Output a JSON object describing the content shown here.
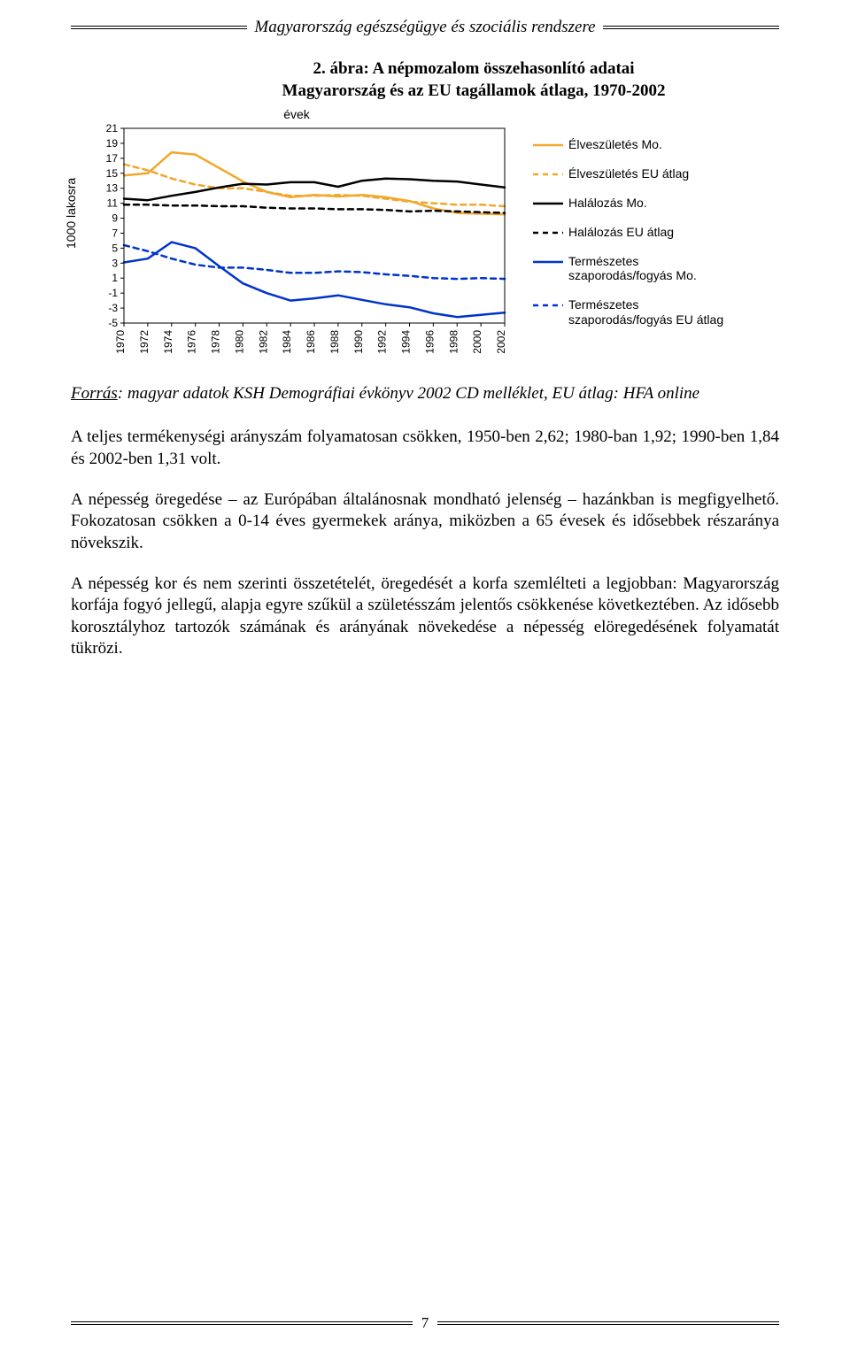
{
  "header": {
    "running_title": "Magyarország egészségügye és szociális rendszere"
  },
  "chart": {
    "title": "2. ábra: A népmozalom összehasonlító adatai\nMagyarország és az EU tagállamok átlaga, 1970-2002",
    "xlabel": "évek",
    "ylabel": "1000 lakosra",
    "years": [
      1970,
      1972,
      1974,
      1976,
      1978,
      1980,
      1982,
      1984,
      1986,
      1988,
      1990,
      1992,
      1994,
      1996,
      1998,
      2000,
      2002
    ],
    "yticks": [
      21,
      19,
      17,
      15,
      13,
      11,
      9,
      7,
      5,
      3,
      1,
      -1,
      -3,
      -5
    ],
    "ylim": [
      -5,
      21
    ],
    "background_color": "#ffffff",
    "axis_color": "#000000",
    "tick_fontsize": 12,
    "series": [
      {
        "key": "birth_mo",
        "label": "Élveszületés Mo.",
        "color": "#f2a72b",
        "dash": "none",
        "width": 2.5,
        "data": [
          14.7,
          15.0,
          17.8,
          17.5,
          15.7,
          13.9,
          12.5,
          11.8,
          12.1,
          11.9,
          12.1,
          11.8,
          11.3,
          10.3,
          9.7,
          9.6,
          9.5
        ]
      },
      {
        "key": "birth_eu",
        "label": "Élveszületés EU átlag",
        "color": "#f2a72b",
        "dash": "6 5",
        "width": 2.5,
        "data": [
          16.2,
          15.4,
          14.3,
          13.5,
          13.0,
          13.0,
          12.5,
          12.0,
          12.0,
          12.1,
          12.0,
          11.6,
          11.2,
          11.0,
          10.8,
          10.8,
          10.6
        ]
      },
      {
        "key": "death_mo",
        "label": "Halálozás Mo.",
        "color": "#000000",
        "dash": "none",
        "width": 2.5,
        "data": [
          11.6,
          11.4,
          12.0,
          12.5,
          13.1,
          13.6,
          13.5,
          13.8,
          13.8,
          13.2,
          14.0,
          14.3,
          14.2,
          14.0,
          13.9,
          13.5,
          13.1
        ]
      },
      {
        "key": "death_eu",
        "label": "Halálozás EU átlag",
        "color": "#000000",
        "dash": "6 5",
        "width": 2.5,
        "data": [
          10.8,
          10.8,
          10.7,
          10.7,
          10.6,
          10.6,
          10.4,
          10.3,
          10.3,
          10.2,
          10.2,
          10.1,
          9.9,
          10.0,
          9.9,
          9.8,
          9.7
        ]
      },
      {
        "key": "nat_mo",
        "label": "Természetes szaporodás/fogyás Mo.",
        "color": "#0033cc",
        "dash": "none",
        "width": 2.5,
        "data": [
          3.1,
          3.6,
          5.8,
          5.0,
          2.6,
          0.3,
          -1.0,
          -2.0,
          -1.7,
          -1.3,
          -1.9,
          -2.5,
          -2.9,
          -3.7,
          -4.2,
          -3.9,
          -3.6
        ]
      },
      {
        "key": "nat_eu",
        "label": "Természetes szaporodás/fogyás EU átlag",
        "color": "#0033cc",
        "dash": "6 5",
        "width": 2.5,
        "data": [
          5.4,
          4.6,
          3.6,
          2.8,
          2.4,
          2.4,
          2.1,
          1.7,
          1.7,
          1.9,
          1.8,
          1.5,
          1.3,
          1.0,
          0.9,
          1.0,
          0.9
        ]
      }
    ]
  },
  "legend": {
    "items": [
      {
        "key": "birth_mo",
        "label": "Élveszületés Mo."
      },
      {
        "key": "birth_eu",
        "label": "Élveszületés EU átlag"
      },
      {
        "key": "death_mo",
        "label": "Halálozás Mo."
      },
      {
        "key": "death_eu",
        "label": "Halálozás EU átlag"
      },
      {
        "key": "nat_mo",
        "label": "Természetes szaporodás/fogyás Mo."
      },
      {
        "key": "nat_eu",
        "label": "Természetes szaporodás/fogyás EU átlag"
      }
    ]
  },
  "source": {
    "label": "Forrás",
    "text": ": magyar adatok KSH Demográfiai évkönyv 2002 CD melléklet, EU átlag: HFA online"
  },
  "paragraphs": [
    "A teljes termékenységi arányszám folyamatosan csökken, 1950-ben 2,62; 1980-ban 1,92; 1990-ben 1,84 és 2002-ben 1,31 volt.",
    "A népesség öregedése – az Európában általánosnak mondható jelenség – hazánkban is megfigyelhető. Fokozatosan csökken a 0-14 éves gyermekek aránya, miközben a 65 évesek és idősebbek részaránya növekszik.",
    "A népesség kor és nem szerinti összetételét, öregedését a korfa szemlélteti a legjobban: Magyarország korfája fogyó jellegű, alapja egyre szűkül a születésszám jelentős csökkenése következtében. Az idősebb korosztályhoz tartozók számának és arányának növekedése a népesség elöregedésének folyamatát tükrözi."
  ],
  "footer": {
    "page": "7"
  }
}
